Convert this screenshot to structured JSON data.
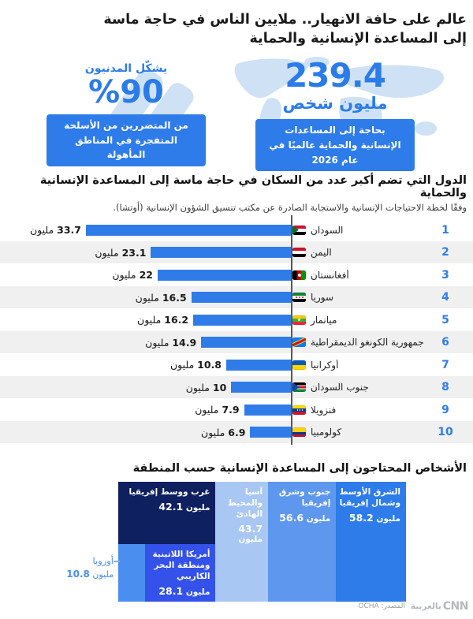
{
  "header": {
    "title": "عالم على حافة الانهيار.. ملايين الناس في حاجة ماسة إلى المساعدة الإنسانية والحماية"
  },
  "stats": {
    "people": {
      "value": "239.4",
      "unit": "مليون شخص",
      "caption": "بحاجة إلى المساعدات الإنسانية والحماية عالميًا في عام 2026"
    },
    "civilians": {
      "label": "يشكّل المدنيون",
      "value": "%90",
      "caption": "من المتضررين من الأسلحة المتفجرة في المناطق المأهولة"
    }
  },
  "countries_section": {
    "title": "الدول التي تضم أكبر عدد من السكان في حاجة ماسة إلى المساعدة الإنسانية والحماية",
    "subtitle": "وفقًا لخطة الاحتياجات الإنسانية والاستجابة الصادرة عن مكتب تنسيق الشؤون الإنسانية (أوتشا)."
  },
  "regions_section": {
    "title": "الأشخاص المحتاجون إلى المساعدة الإنسانية حسب المنطقة"
  },
  "chart_data": [
    {
      "type": "bar",
      "orientation": "horizontal-rtl",
      "unit": "مليون",
      "max": 33.7,
      "bar_color": "#2f7ce9",
      "categories": [
        "السودان",
        "اليمن",
        "أفغانستان",
        "سوريا",
        "ميانمار",
        "جمهورية الكونغو الديمقراطية",
        "أوكرانيا",
        "جنوب السودان",
        "فنزويلا",
        "كولومبيا"
      ],
      "values": [
        33.7,
        23.1,
        22,
        16.5,
        16.2,
        14.9,
        10.8,
        10,
        7.9,
        6.9
      ],
      "rows": [
        {
          "rank": "1",
          "name": "السودان",
          "flag": "sudan",
          "value": 33.7,
          "label": "33.7"
        },
        {
          "rank": "2",
          "name": "اليمن",
          "flag": "yemen",
          "value": 23.1,
          "label": "23.1"
        },
        {
          "rank": "3",
          "name": "أفغانستان",
          "flag": "afghanistan",
          "value": 22,
          "label": "22"
        },
        {
          "rank": "4",
          "name": "سوريا",
          "flag": "syria",
          "value": 16.5,
          "label": "16.5"
        },
        {
          "rank": "5",
          "name": "ميانمار",
          "flag": "myanmar",
          "value": 16.2,
          "label": "16.2"
        },
        {
          "rank": "6",
          "name": "جمهورية الكونغو الديمقراطية",
          "flag": "drc",
          "value": 14.9,
          "label": "14.9"
        },
        {
          "rank": "7",
          "name": "أوكرانيا",
          "flag": "ukraine",
          "value": 10.8,
          "label": "10.8"
        },
        {
          "rank": "8",
          "name": "جنوب السودان",
          "flag": "south-sudan",
          "value": 10,
          "label": "10"
        },
        {
          "rank": "9",
          "name": "فنزويلا",
          "flag": "venezuela",
          "value": 7.9,
          "label": "7.9"
        },
        {
          "rank": "10",
          "name": "كولومبيا",
          "flag": "colombia",
          "value": 6.9,
          "label": "6.9"
        }
      ]
    },
    {
      "type": "treemap",
      "unit": "مليون",
      "regions": [
        {
          "name": "الشرق الأوسط وشمال إفريقيا",
          "value": 58.2,
          "label": "58.2",
          "color": "#2d7ce9"
        },
        {
          "name": "جنوب وشرق إفريقيا",
          "value": 56.6,
          "label": "56.6",
          "color": "#5e97ee"
        },
        {
          "name": "آسيا والمحيط الهادئ",
          "value": 43.7,
          "label": "43.7",
          "color": "#a9c7f3"
        },
        {
          "name": "غرب ووسط إفريقيا",
          "value": 42.1,
          "label": "42.1",
          "color": "#0f2060"
        },
        {
          "name": "أمريكا اللاتينية ومنطقة البحر الكاريبي",
          "value": 28.1,
          "label": "28.1",
          "color": "#3452e9"
        },
        {
          "name": "أوروبا",
          "value": 10.8,
          "label": "10.8",
          "color": "#4a8ff0",
          "label_outside": true
        }
      ]
    }
  ],
  "footer": {
    "source": "المصدر: OCHA",
    "logo_en": "CNN",
    "logo_ar": "بالعربية"
  },
  "colors": {
    "primary_blue": "#2b7ce9",
    "bar_blue": "#2f7ce9",
    "row_stripe": "#f0f0f1",
    "map_tint": "#cfe2f5"
  }
}
